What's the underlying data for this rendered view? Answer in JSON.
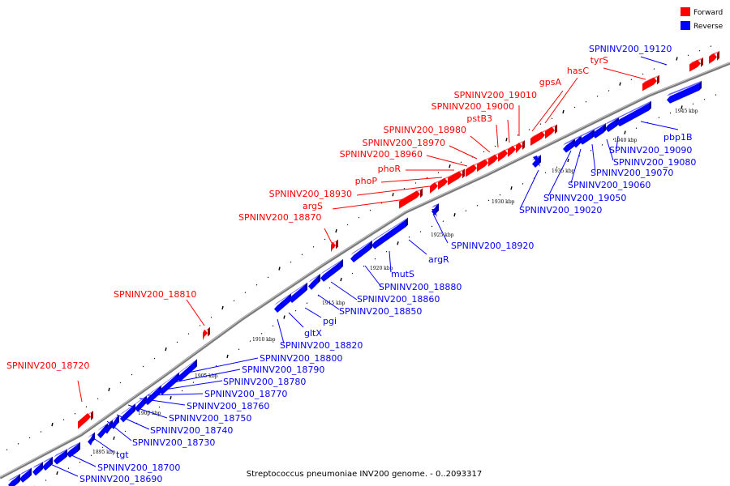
{
  "caption": "Streptococcus pneumoniae INV200 genome. - 0..2093317",
  "legend": [
    {
      "label": "Forward",
      "color": "#ff0000"
    },
    {
      "label": "Reverse",
      "color": "#0000ff"
    }
  ],
  "colors": {
    "forward": "#ff0000",
    "reverse": "#0000ff",
    "backbone": "#808080"
  },
  "ticks": [
    "1895 kbp",
    "1900 kbp",
    "1905 kbp",
    "1910 kbp",
    "1915 kbp",
    "1920 kbp",
    "1925 kbp",
    "1930 kbp",
    "1935 kbp",
    "1940 kbp",
    "1945 kbp"
  ],
  "forward_genes": [
    "SPNINV200_18720",
    "SPNINV200_18810",
    "SPNINV200_18870",
    "argS",
    "SPNINV200_18930",
    "phoP",
    "phoR",
    "SPNINV200_18960",
    "SPNINV200_18970",
    "SPNINV200_18980",
    "pstB3",
    "SPNINV200_19000",
    "SPNINV200_19010",
    "gpsA",
    "hasC",
    "tyrS"
  ],
  "reverse_genes": [
    "SPNINV200_18690",
    "SPNINV200_18700",
    "tgt",
    "SPNINV200_18730",
    "SPNINV200_18740",
    "SPNINV200_18750",
    "SPNINV200_18760",
    "SPNINV200_18770",
    "SPNINV200_18780",
    "SPNINV200_18790",
    "SPNINV200_18800",
    "SPNINV200_18820",
    "gltX",
    "pgi",
    "SPNINV200_18850",
    "SPNINV200_18860",
    "SPNINV200_18880",
    "mutS",
    "argR",
    "SPNINV200_18920",
    "SPNINV200_19020",
    "SPNINV200_19050",
    "SPNINV200_19060",
    "SPNINV200_19070",
    "SPNINV200_19080",
    "SPNINV200_19090",
    "pbp1B",
    "SPNINV200_19120"
  ]
}
